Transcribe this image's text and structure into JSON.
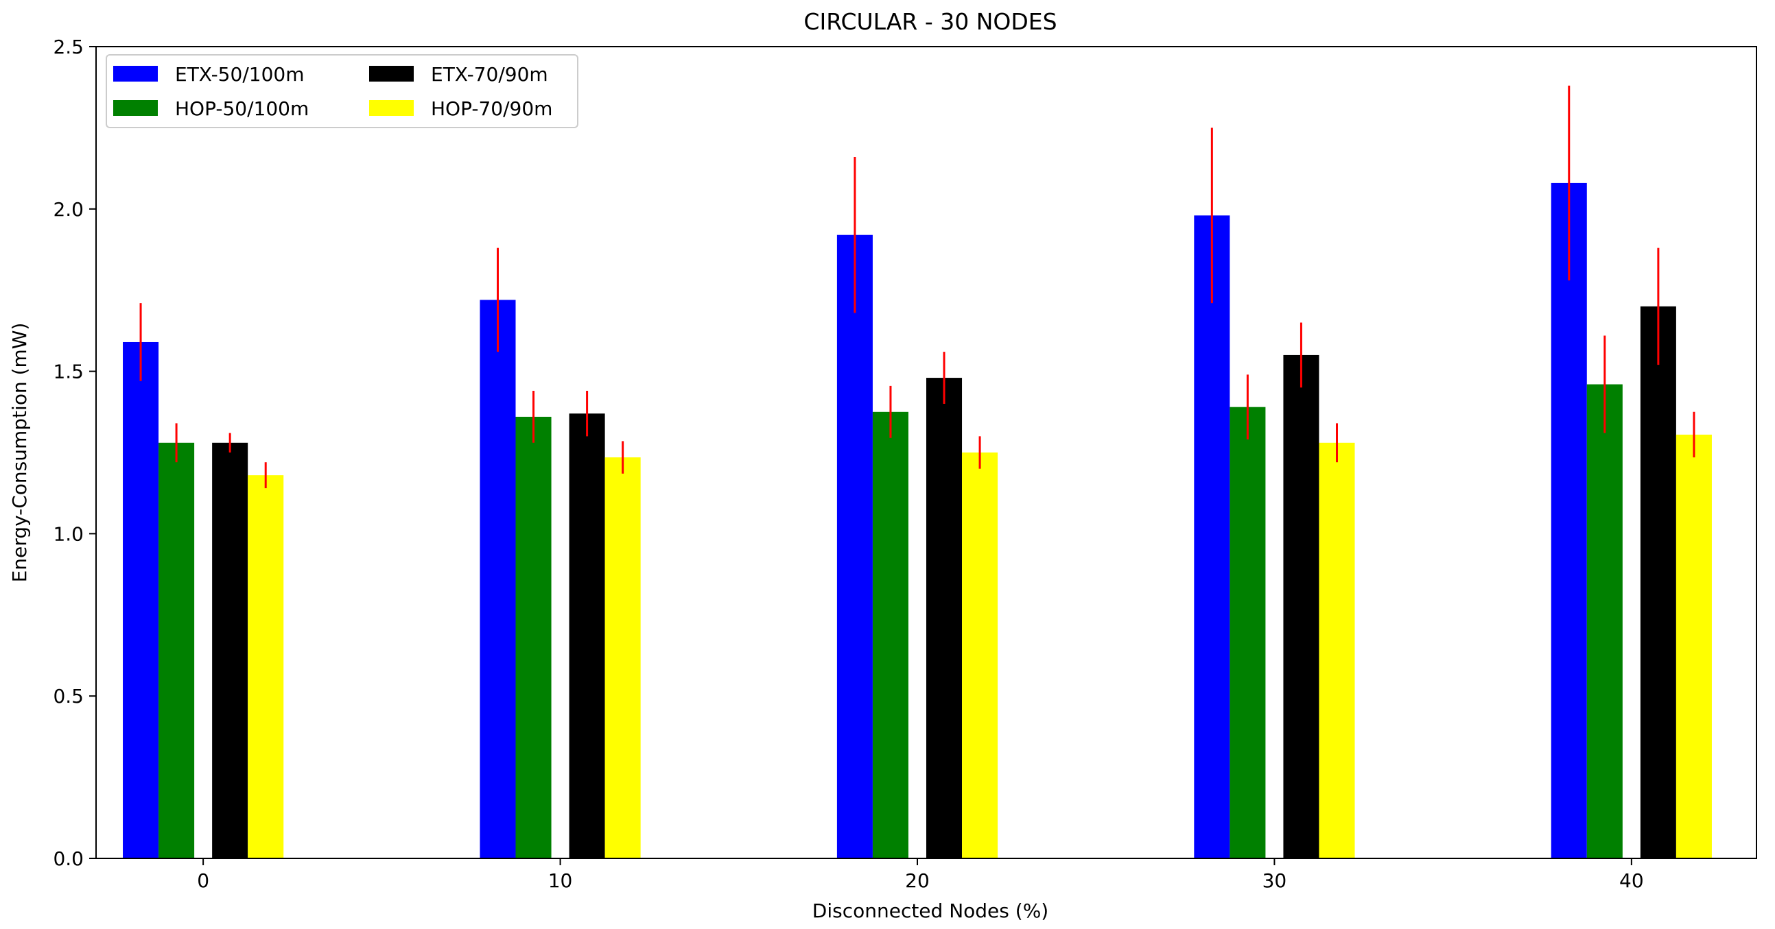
{
  "chart_data": {
    "type": "bar",
    "title": "CIRCULAR - 30 NODES",
    "xlabel": "Disconnected Nodes (%)",
    "ylabel": "Energy-Consumption (mW)",
    "ylim": [
      0,
      2.5
    ],
    "xlim": [
      -3,
      43.5
    ],
    "yticks": [
      {
        "value": 0.0,
        "label": "0.0"
      },
      {
        "value": 0.5,
        "label": "0.5"
      },
      {
        "value": 1.0,
        "label": "1.0"
      },
      {
        "value": 1.5,
        "label": "1.5"
      },
      {
        "value": 2.0,
        "label": "2.0"
      },
      {
        "value": 2.5,
        "label": "2.5"
      }
    ],
    "xticks": [
      {
        "value": 0,
        "label": "0"
      },
      {
        "value": 10,
        "label": "10"
      },
      {
        "value": 20,
        "label": "20"
      },
      {
        "value": 30,
        "label": "30"
      },
      {
        "value": 40,
        "label": "40"
      }
    ],
    "categories": [
      "0",
      "10",
      "20",
      "30",
      "40"
    ],
    "grid": false,
    "legend_position": "top-left",
    "bar_width": 1,
    "error_color": "#ff0000",
    "series": [
      {
        "name": "ETX-50/100m",
        "color": "#0000ff",
        "offset": -1.75,
        "values": [
          1.59,
          1.72,
          1.92,
          1.98,
          2.08
        ],
        "errors": [
          0.12,
          0.16,
          0.24,
          0.27,
          0.3
        ]
      },
      {
        "name": "HOP-50/100m",
        "color": "#008000",
        "offset": -0.75,
        "values": [
          1.28,
          1.36,
          1.375,
          1.39,
          1.46
        ],
        "errors": [
          0.06,
          0.08,
          0.08,
          0.1,
          0.15
        ]
      },
      {
        "name": "ETX-70/90m",
        "color": "#000000",
        "offset": 0.75,
        "values": [
          1.28,
          1.37,
          1.48,
          1.55,
          1.7
        ],
        "errors": [
          0.03,
          0.07,
          0.08,
          0.1,
          0.18
        ]
      },
      {
        "name": "HOP-70/90m",
        "color": "#ffff00",
        "offset": 1.75,
        "values": [
          1.18,
          1.235,
          1.25,
          1.28,
          1.305
        ],
        "errors": [
          0.04,
          0.05,
          0.05,
          0.06,
          0.07
        ]
      }
    ]
  }
}
